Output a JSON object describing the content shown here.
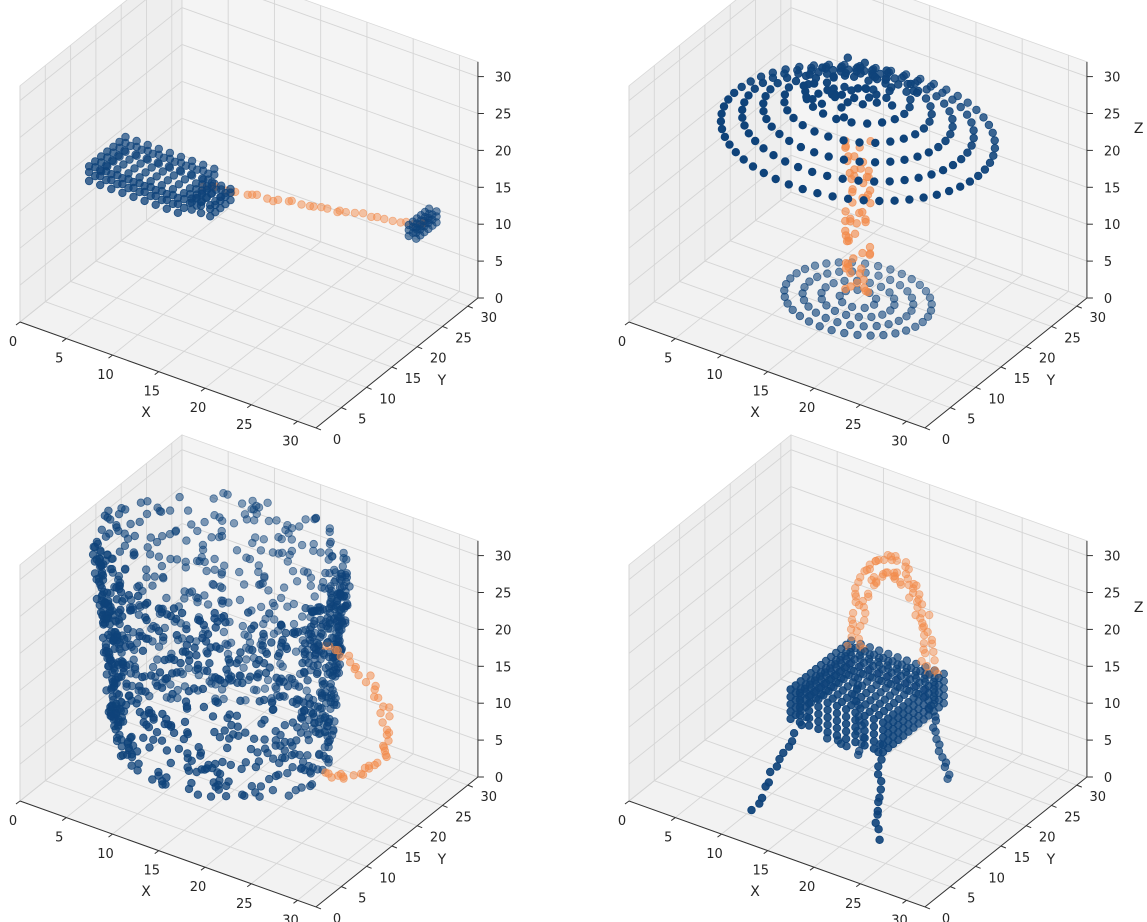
{
  "chart_data": [
    {
      "type": "scatter",
      "object": "airplane",
      "xlabel": "X",
      "ylabel": "Y",
      "zlabel": "",
      "xlim": [
        0,
        32
      ],
      "ylim": [
        0,
        32
      ],
      "zlim": [
        0,
        32
      ],
      "xticks": [
        "0",
        "5",
        "10",
        "15",
        "20",
        "25",
        "30"
      ],
      "yticks": [
        "0",
        "5",
        "10",
        "15",
        "20",
        "25",
        "30"
      ],
      "zticks": [
        "0",
        "5",
        "10",
        "15",
        "20",
        "25",
        "30"
      ],
      "grid": true,
      "series": [
        {
          "color": "#0f437a",
          "alpha": 0.65,
          "shapes": [
            {
              "kind": "box",
              "x": [
                2,
                12
              ],
              "y": [
                10,
                18
              ],
              "z": [
                14.5,
                16.5
              ],
              "step": 1.2
            },
            {
              "kind": "box",
              "x": [
                30,
                31.5
              ],
              "y": [
                22,
                26
              ],
              "z": [
                13,
                14.5
              ],
              "step": 0.8
            },
            {
              "kind": "box",
              "x": [
                12,
                14
              ],
              "y": [
                12,
                16
              ],
              "z": [
                14,
                15.5
              ],
              "step": 1.0
            }
          ]
        },
        {
          "color": "#f28a4a",
          "alpha": 0.5,
          "shapes": [
            {
              "kind": "line",
              "from": [
                11,
                16,
                14.5
              ],
              "to": [
                30,
                24,
                13.5
              ],
              "n": 32
            }
          ]
        }
      ]
    },
    {
      "type": "scatter",
      "object": "lamp",
      "xlabel": "X",
      "ylabel": "Y",
      "zlabel": "Z",
      "xlim": [
        0,
        32
      ],
      "ylim": [
        0,
        32
      ],
      "zlim": [
        0,
        32
      ],
      "xticks": [
        "0",
        "5",
        "10",
        "15",
        "20",
        "25",
        "30"
      ],
      "yticks": [
        "0",
        "5",
        "10",
        "15",
        "20",
        "25",
        "30"
      ],
      "zticks": [
        "0",
        "5",
        "10",
        "15",
        "20",
        "25",
        "30"
      ],
      "grid": true,
      "series": [
        {
          "color": "#0f437a",
          "alpha": 0.9,
          "shapes": [
            {
              "kind": "shade",
              "center": [
                16,
                16
              ],
              "z": [
                24,
                30
              ],
              "r": [
                13,
                3
              ],
              "rings": 6
            }
          ]
        },
        {
          "color": "#0f437a",
          "alpha": 0.55,
          "shapes": [
            {
              "kind": "disk",
              "center": [
                16,
                16
              ],
              "z": 1.5,
              "r": 7,
              "rings": 4
            }
          ]
        },
        {
          "color": "#f28a4a",
          "alpha": 0.6,
          "shapes": [
            {
              "kind": "column",
              "center": [
                16,
                16
              ],
              "z": [
                2,
                23
              ],
              "r": 1.2,
              "n": 60
            }
          ]
        }
      ]
    },
    {
      "type": "scatter",
      "object": "mug",
      "xlabel": "X",
      "ylabel": "Y",
      "zlabel": "",
      "xlim": [
        0,
        32
      ],
      "ylim": [
        0,
        32
      ],
      "zlim": [
        0,
        32
      ],
      "xticks": [
        "0",
        "5",
        "10",
        "15",
        "20",
        "25",
        "30"
      ],
      "yticks": [
        "0",
        "5",
        "10",
        "15",
        "20",
        "25",
        "30"
      ],
      "zticks": [
        "0",
        "5",
        "10",
        "15",
        "20",
        "25",
        "30"
      ],
      "grid": true,
      "series": [
        {
          "color": "#0f437a",
          "alpha": 0.6,
          "shapes": [
            {
              "kind": "cylinder",
              "center": [
                13,
                16
              ],
              "z": [
                4,
                31
              ],
              "r": [
                10,
                12
              ],
              "n": 1100
            }
          ]
        },
        {
          "color": "#f28a4a",
          "alpha": 0.5,
          "shapes": [
            {
              "kind": "handle",
              "center": [
                24,
                16
              ],
              "z": [
                6,
                23
              ],
              "reach": 7,
              "n": 45
            }
          ]
        }
      ]
    },
    {
      "type": "scatter",
      "object": "chair",
      "xlabel": "X",
      "ylabel": "Y",
      "zlabel": "Z",
      "xlim": [
        0,
        32
      ],
      "ylim": [
        0,
        32
      ],
      "zlim": [
        0,
        32
      ],
      "xticks": [
        "0",
        "5",
        "10",
        "15",
        "20",
        "25",
        "30"
      ],
      "yticks": [
        "0",
        "5",
        "10",
        "15",
        "20",
        "25",
        "30"
      ],
      "zticks": [
        "0",
        "5",
        "10",
        "15",
        "20",
        "25",
        "30"
      ],
      "grid": true,
      "series": [
        {
          "color": "#0f437a",
          "alpha": 0.75,
          "shapes": [
            {
              "kind": "box",
              "x": [
                12,
                22
              ],
              "y": [
                10,
                22
              ],
              "z": [
                11,
                15
              ],
              "step": 1.0
            },
            {
              "kind": "line",
              "from": [
                13,
                11,
                11
              ],
              "to": [
                10,
                6,
                0
              ],
              "n": 14
            },
            {
              "kind": "line",
              "from": [
                21,
                11,
                11
              ],
              "to": [
                22,
                9,
                0
              ],
              "n": 14
            },
            {
              "kind": "line",
              "from": [
                13,
                21,
                11
              ],
              "to": [
                13,
                22,
                0
              ],
              "n": 14
            },
            {
              "kind": "line",
              "from": [
                21,
                21,
                11
              ],
              "to": [
                22,
                23,
                0
              ],
              "n": 14
            },
            {
              "kind": "line",
              "from": [
                14,
                14,
                7
              ],
              "to": [
                16,
                14,
                7
              ],
              "n": 4
            }
          ]
        },
        {
          "color": "#f28a4a",
          "alpha": 0.5,
          "shapes": [
            {
              "kind": "backrest",
              "x": [
                12.5,
                21.5
              ],
              "y": 21,
              "z": [
                15,
                29
              ],
              "n": 90
            }
          ]
        }
      ]
    }
  ]
}
